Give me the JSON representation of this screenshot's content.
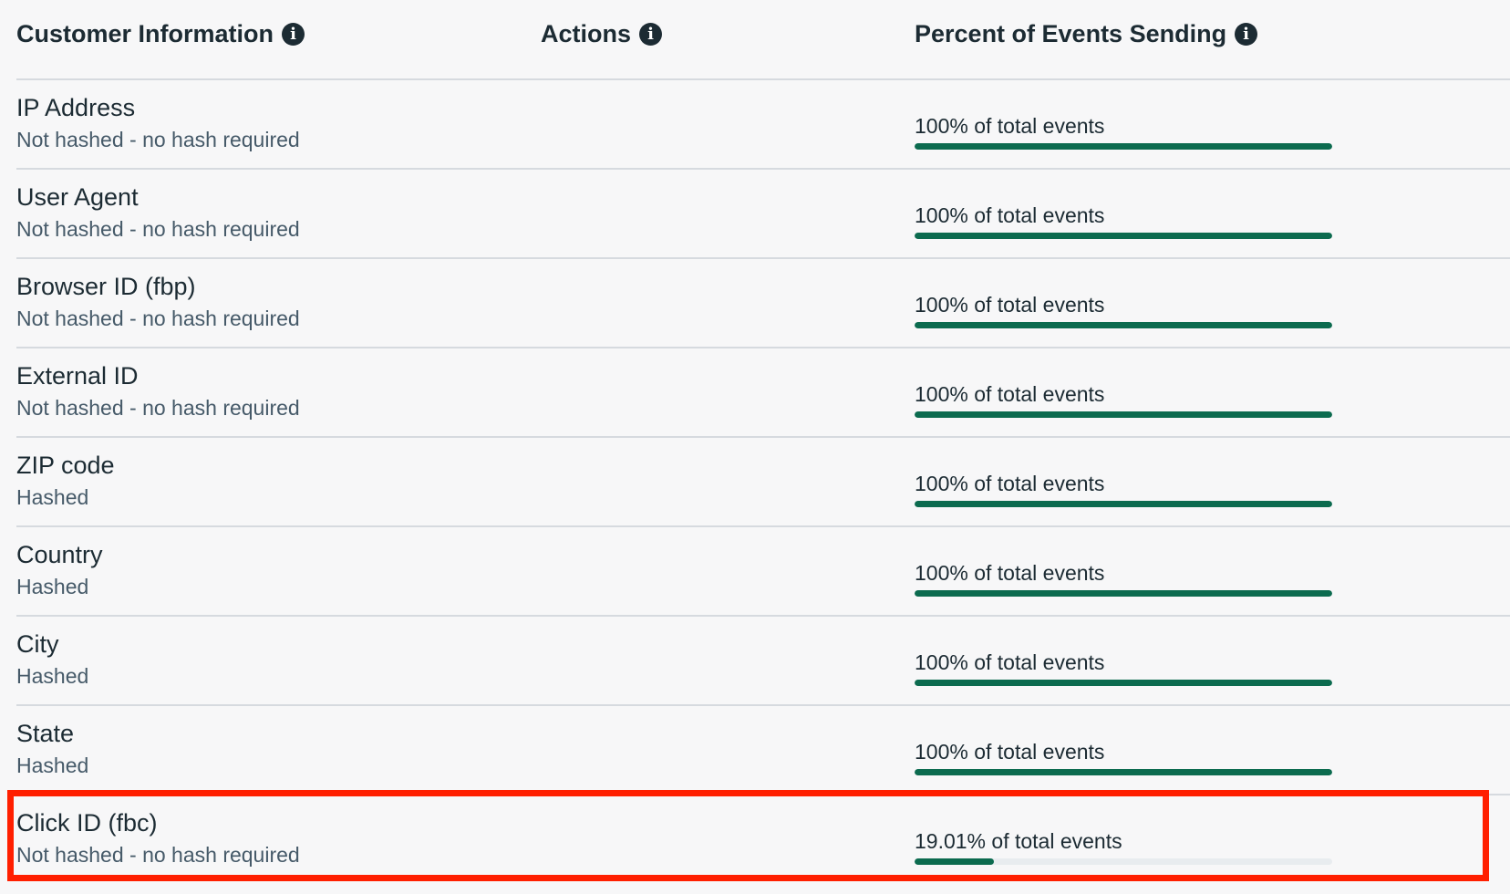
{
  "header": {
    "customer_information": "Customer Information",
    "actions": "Actions",
    "percent_of_events": "Percent of Events Sending",
    "info_icon_glyph": "i"
  },
  "rows": [
    {
      "name": "IP Address",
      "hash_status": "Not hashed - no hash required",
      "percent_label": "100% of total events",
      "percent": 100
    },
    {
      "name": "User Agent",
      "hash_status": "Not hashed - no hash required",
      "percent_label": "100% of total events",
      "percent": 100
    },
    {
      "name": "Browser ID (fbp)",
      "hash_status": "Not hashed - no hash required",
      "percent_label": "100% of total events",
      "percent": 100
    },
    {
      "name": "External ID",
      "hash_status": "Not hashed - no hash required",
      "percent_label": "100% of total events",
      "percent": 100
    },
    {
      "name": "ZIP code",
      "hash_status": "Hashed",
      "percent_label": "100% of total events",
      "percent": 100
    },
    {
      "name": "Country",
      "hash_status": "Hashed",
      "percent_label": "100% of total events",
      "percent": 100
    },
    {
      "name": "City",
      "hash_status": "Hashed",
      "percent_label": "100% of total events",
      "percent": 100
    },
    {
      "name": "State",
      "hash_status": "Hashed",
      "percent_label": "100% of total events",
      "percent": 100
    },
    {
      "name": "Click ID (fbc)",
      "hash_status": "Not hashed - no hash required",
      "percent_label": "19.01% of total events",
      "percent": 19.01,
      "highlighted": true
    }
  ],
  "colors": {
    "bar_fill": "#0c6b4f",
    "bar_track": "#e8ecef",
    "highlight_border": "#ff1f00"
  }
}
